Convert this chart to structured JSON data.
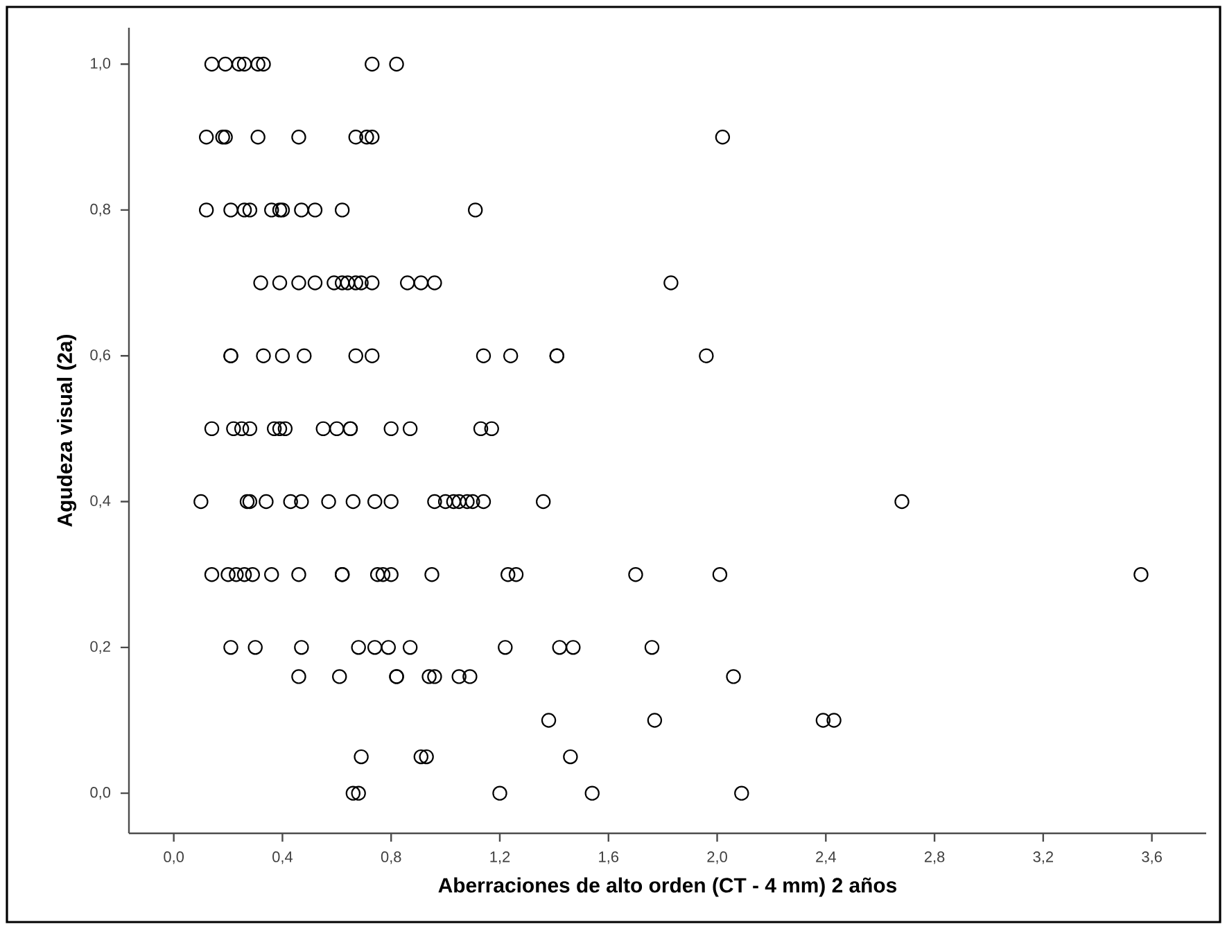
{
  "chart_data": {
    "type": "scatter",
    "xlabel": "Aberraciones de alto orden (CT - 4 mm) 2 años",
    "ylabel": "Agudeza visual (2a)",
    "marker": "circle",
    "color": "#000000",
    "xlim": [
      -0.165,
      3.8
    ],
    "ylim": [
      -0.055,
      1.05
    ],
    "xticks": [
      {
        "value": 0,
        "label": "0,0"
      },
      {
        "value": 0.4,
        "label": "0,4"
      },
      {
        "value": 0.8,
        "label": "0,8"
      },
      {
        "value": 1.2,
        "label": "1,2"
      },
      {
        "value": 1.6,
        "label": "1,6"
      },
      {
        "value": 2.0,
        "label": "2,0"
      },
      {
        "value": 2.4,
        "label": "2,4"
      },
      {
        "value": 2.8,
        "label": "2,8"
      },
      {
        "value": 3.2,
        "label": "3,2"
      },
      {
        "value": 3.6,
        "label": "3,6"
      }
    ],
    "yticks": [
      {
        "value": 0,
        "label": "0,0"
      },
      {
        "value": 0.2,
        "label": "0,2"
      },
      {
        "value": 0.4,
        "label": "0,4"
      },
      {
        "value": 0.6,
        "label": "0,6"
      },
      {
        "value": 0.8,
        "label": "0,8"
      },
      {
        "value": 1.0,
        "label": "1,0"
      }
    ],
    "x": [
      0.14,
      0.19,
      0.24,
      0.26,
      0.31,
      0.33,
      0.73,
      0.82,
      0.12,
      0.18,
      0.19,
      0.31,
      0.46,
      0.67,
      0.71,
      0.73,
      2.02,
      0.12,
      0.21,
      0.26,
      0.28,
      0.36,
      0.39,
      0.4,
      0.47,
      0.52,
      0.62,
      1.11,
      0.32,
      0.39,
      0.46,
      0.52,
      0.59,
      0.62,
      0.64,
      0.67,
      0.69,
      0.73,
      0.86,
      0.91,
      0.96,
      1.83,
      0.21,
      0.21,
      0.33,
      0.4,
      0.48,
      0.67,
      0.73,
      1.14,
      1.24,
      1.41,
      1.41,
      1.96,
      0.14,
      0.22,
      0.25,
      0.28,
      0.37,
      0.39,
      0.41,
      0.55,
      0.6,
      0.65,
      0.65,
      0.8,
      0.87,
      1.13,
      1.17,
      0.1,
      0.27,
      0.28,
      0.34,
      0.43,
      0.47,
      0.57,
      0.66,
      0.74,
      0.8,
      0.96,
      1.0,
      1.03,
      1.05,
      1.08,
      1.1,
      1.14,
      1.36,
      2.68,
      0.14,
      0.2,
      0.23,
      0.26,
      0.29,
      0.36,
      0.46,
      0.62,
      0.62,
      0.75,
      0.77,
      0.8,
      0.95,
      1.23,
      1.26,
      1.7,
      2.01,
      3.56,
      0.21,
      0.3,
      0.47,
      0.68,
      0.74,
      0.79,
      0.87,
      1.22,
      1.42,
      1.47,
      1.76,
      0.46,
      0.61,
      0.82,
      0.82,
      0.94,
      0.96,
      1.05,
      1.09,
      2.06,
      1.38,
      1.77,
      2.39,
      2.43,
      0.69,
      0.91,
      0.93,
      1.46,
      0.66,
      0.68,
      1.2,
      1.54,
      2.09
    ],
    "values": [
      1.0,
      1.0,
      1.0,
      1.0,
      1.0,
      1.0,
      1.0,
      1.0,
      0.9,
      0.9,
      0.9,
      0.9,
      0.9,
      0.9,
      0.9,
      0.9,
      0.9,
      0.8,
      0.8,
      0.8,
      0.8,
      0.8,
      0.8,
      0.8,
      0.8,
      0.8,
      0.8,
      0.8,
      0.7,
      0.7,
      0.7,
      0.7,
      0.7,
      0.7,
      0.7,
      0.7,
      0.7,
      0.7,
      0.7,
      0.7,
      0.7,
      0.7,
      0.6,
      0.6,
      0.6,
      0.6,
      0.6,
      0.6,
      0.6,
      0.6,
      0.6,
      0.6,
      0.6,
      0.6,
      0.5,
      0.5,
      0.5,
      0.5,
      0.5,
      0.5,
      0.5,
      0.5,
      0.5,
      0.5,
      0.5,
      0.5,
      0.5,
      0.5,
      0.5,
      0.4,
      0.4,
      0.4,
      0.4,
      0.4,
      0.4,
      0.4,
      0.4,
      0.4,
      0.4,
      0.4,
      0.4,
      0.4,
      0.4,
      0.4,
      0.4,
      0.4,
      0.4,
      0.4,
      0.3,
      0.3,
      0.3,
      0.3,
      0.3,
      0.3,
      0.3,
      0.3,
      0.3,
      0.3,
      0.3,
      0.3,
      0.3,
      0.3,
      0.3,
      0.3,
      0.3,
      0.3,
      0.2,
      0.2,
      0.2,
      0.2,
      0.2,
      0.2,
      0.2,
      0.2,
      0.2,
      0.2,
      0.2,
      0.16,
      0.16,
      0.16,
      0.16,
      0.16,
      0.16,
      0.16,
      0.16,
      0.16,
      0.1,
      0.1,
      0.1,
      0.1,
      0.05,
      0.05,
      0.05,
      0.05,
      0.0,
      0.0,
      0.0,
      0.0,
      0.0
    ]
  }
}
